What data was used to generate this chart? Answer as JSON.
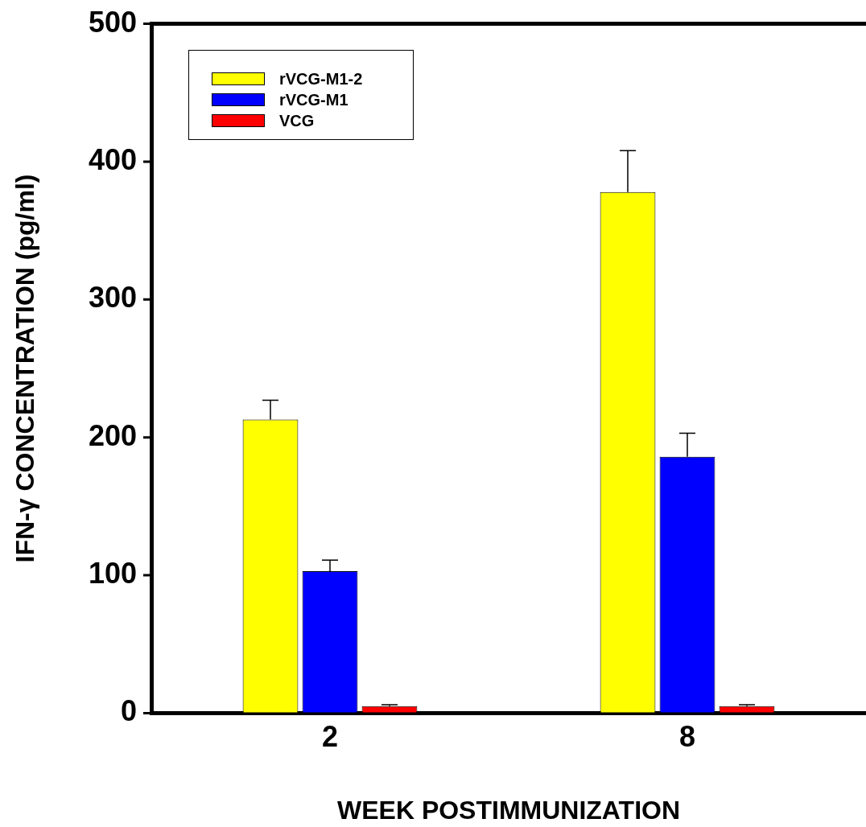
{
  "chart_data": {
    "type": "bar",
    "xlabel": "WEEK POSTIMMUNIZATION",
    "ylabel": "IFN-γ CONCENTRATION (pg/ml)",
    "categories": [
      "2",
      "8"
    ],
    "series": [
      {
        "name": "rVCG-M1-2",
        "color": "#ffff00",
        "values": [
          213,
          378
        ],
        "errors": [
          14,
          30
        ]
      },
      {
        "name": "rVCG-M1",
        "color": "#0000ff",
        "values": [
          103,
          186
        ],
        "errors": [
          8,
          17
        ]
      },
      {
        "name": "VCG",
        "color": "#ff0000",
        "values": [
          5,
          5
        ],
        "errors": [
          1,
          1
        ]
      }
    ],
    "ylim": [
      0,
      500
    ],
    "yticks": [
      0,
      100,
      200,
      300,
      400,
      500
    ],
    "grid": false,
    "legend": "top left"
  }
}
